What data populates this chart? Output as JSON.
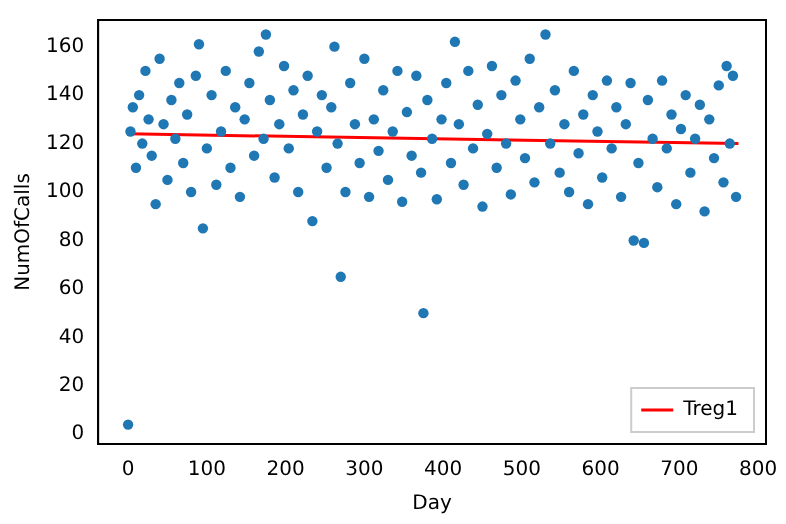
{
  "chart_data": {
    "type": "scatter",
    "xlabel": "Day",
    "ylabel": "NumOfCalls",
    "xlim": [
      -38,
      810
    ],
    "ylim": [
      -4,
      171
    ],
    "xticks": [
      0,
      100,
      200,
      300,
      400,
      500,
      600,
      700,
      800
    ],
    "yticks": [
      0,
      20,
      40,
      60,
      80,
      100,
      120,
      140,
      160
    ],
    "grid": false,
    "legend": "bottom right",
    "marker": "circle",
    "series": [
      {
        "color": "#1f77b4",
        "x": [
          0,
          3,
          6,
          10,
          14,
          18,
          22,
          26,
          30,
          35,
          40,
          45,
          50,
          55,
          60,
          65,
          70,
          75,
          80,
          86,
          90,
          95,
          100,
          106,
          112,
          118,
          124,
          130,
          136,
          142,
          148,
          154,
          160,
          166,
          172,
          175,
          180,
          186,
          192,
          198,
          204,
          210,
          216,
          222,
          228,
          234,
          240,
          246,
          252,
          258,
          262,
          266,
          270,
          276,
          282,
          288,
          294,
          300,
          306,
          312,
          318,
          324,
          330,
          336,
          342,
          348,
          354,
          360,
          366,
          372,
          375,
          380,
          386,
          392,
          398,
          404,
          410,
          415,
          420,
          426,
          432,
          438,
          444,
          450,
          456,
          462,
          468,
          474,
          480,
          486,
          492,
          498,
          504,
          510,
          516,
          522,
          530,
          536,
          542,
          548,
          554,
          560,
          566,
          572,
          578,
          584,
          590,
          596,
          602,
          608,
          614,
          620,
          626,
          632,
          638,
          642,
          648,
          655,
          660,
          666,
          672,
          678,
          684,
          690,
          696,
          702,
          708,
          714,
          720,
          726,
          732,
          738,
          744,
          750,
          756,
          760,
          764,
          768,
          772
        ],
        "values": [
          4,
          125,
          135,
          110,
          140,
          120,
          150,
          130,
          115,
          95,
          155,
          128,
          105,
          138,
          122,
          145,
          112,
          132,
          100,
          148,
          161,
          85,
          118,
          140,
          103,
          125,
          150,
          110,
          135,
          98,
          130,
          145,
          115,
          158,
          122,
          165,
          138,
          106,
          128,
          152,
          118,
          142,
          100,
          132,
          148,
          88,
          125,
          140,
          110,
          135,
          160,
          120,
          65,
          100,
          145,
          128,
          112,
          155,
          98,
          130,
          117,
          142,
          105,
          125,
          150,
          96,
          133,
          115,
          148,
          108,
          50,
          138,
          122,
          97,
          130,
          145,
          112,
          162,
          128,
          103,
          150,
          118,
          136,
          94,
          124,
          152,
          110,
          140,
          120,
          99,
          146,
          130,
          114,
          155,
          104,
          135,
          165,
          120,
          142,
          108,
          128,
          100,
          150,
          116,
          132,
          95,
          140,
          125,
          106,
          146,
          118,
          135,
          98,
          128,
          145,
          80,
          112,
          79,
          138,
          122,
          102,
          146,
          118,
          132,
          95,
          126,
          140,
          108,
          122,
          136,
          92,
          130,
          114,
          144,
          104,
          152,
          120,
          148,
          98
        ]
      },
      {
        "type": "line",
        "name": "Treg1",
        "color": "#ff0000",
        "x": [
          0,
          775
        ],
        "values": [
          124,
          120
        ],
        "marker": "none"
      }
    ]
  }
}
